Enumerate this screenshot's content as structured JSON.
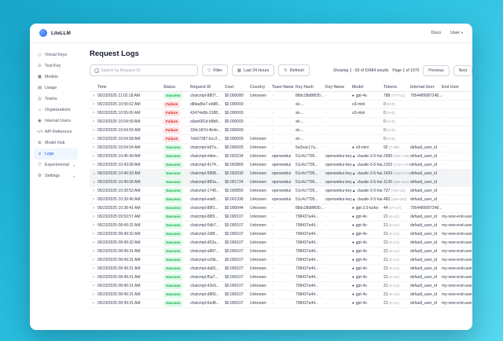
{
  "window": {
    "brand": "LiteLLM",
    "nav": {
      "docs": "Docs",
      "user": "User"
    }
  },
  "sidebar": {
    "items": [
      {
        "label": "Virtual Keys",
        "icon": "key-icon",
        "active": false,
        "collapsible": false
      },
      {
        "label": "Test Key",
        "icon": "test-key-icon",
        "active": false,
        "collapsible": false
      },
      {
        "label": "Models",
        "icon": "models-icon",
        "active": false,
        "collapsible": false
      },
      {
        "label": "Usage",
        "icon": "usage-chart-icon",
        "active": false,
        "collapsible": false
      },
      {
        "label": "Teams",
        "icon": "teams-icon",
        "active": false,
        "collapsible": false
      },
      {
        "label": "Organizations",
        "icon": "organization-icon",
        "active": false,
        "collapsible": false
      },
      {
        "label": "Internal Users",
        "icon": "user-icon",
        "active": false,
        "collapsible": false
      },
      {
        "label": "API Reference",
        "icon": "code-icon",
        "active": false,
        "collapsible": false
      },
      {
        "label": "Model Hub",
        "icon": "grid-icon",
        "active": false,
        "collapsible": false
      },
      {
        "label": "Logs",
        "icon": "logs-icon",
        "active": true,
        "collapsible": false
      },
      {
        "label": "Experimental",
        "icon": "flask-icon",
        "active": false,
        "collapsible": true
      },
      {
        "label": "Settings",
        "icon": "gear-icon",
        "active": false,
        "collapsible": true
      }
    ]
  },
  "page": {
    "title": "Request Logs"
  },
  "toolbar": {
    "search_placeholder": "Search by Request ID",
    "filter_label": "Filter",
    "range_label": "Last 24 Hours",
    "refresh_label": "Refresh"
  },
  "pagination": {
    "showing": "Showing 1 - 50 of 53484 results",
    "page": "Page 1 of 1070",
    "previous": "Previous",
    "next": "Next"
  },
  "table": {
    "columns": [
      "",
      "Time",
      "Status",
      "Request ID",
      "Cost",
      "Country",
      "Team Name",
      "Key Hash",
      "Key Name",
      "Model",
      "Tokens",
      "Internal User",
      "End User"
    ],
    "rows": [
      {
        "time": "05/23/2025 11:02:18 AM",
        "status": "Success",
        "request_id": "chatcmpl-8807...",
        "cost": "$0.000080",
        "country": "Unknown",
        "team": "-",
        "key_hash": "88dc28d8f830...",
        "key_name": "-",
        "model": "gpt-4o",
        "provider": "openai",
        "tokens": "788",
        "tokens_detail": "(777+11)",
        "internal_user": "7954489087248...",
        "end_user": "-",
        "expanded": false
      },
      {
        "time": "05/23/2025 10:55:02 AM",
        "status": "Failure",
        "request_id": "d8dad5e7-eb88...",
        "cost": "$0.000000",
        "country": "-",
        "team": "-",
        "key_hash": "sk-...",
        "key_name": "-",
        "model": "o3-mini",
        "provider": "none",
        "tokens": "0",
        "tokens_detail": "(0+0)",
        "internal_user": "-",
        "end_user": "-",
        "expanded": false
      },
      {
        "time": "05/23/2025 10:55:00 AM",
        "status": "Failure",
        "request_id": "43474a9b-3188...",
        "cost": "$0.000000",
        "country": "-",
        "team": "-",
        "key_hash": "sk-...",
        "key_name": "-",
        "model": "o3-mini",
        "provider": "none",
        "tokens": "0",
        "tokens_detail": "(0+0)",
        "internal_user": "-",
        "end_user": "-",
        "expanded": false
      },
      {
        "time": "05/23/2025 10:54:59 AM",
        "status": "Failure",
        "request_id": "a9ae681d-b8b8...",
        "cost": "$0.000000",
        "country": "-",
        "team": "-",
        "key_hash": "sk-...",
        "key_name": "-",
        "model": "",
        "provider": "none",
        "tokens": "0",
        "tokens_detail": "(0+0)",
        "internal_user": "-",
        "end_user": "-",
        "expanded": false
      },
      {
        "time": "05/23/2025 10:54:59 AM",
        "status": "Failure",
        "request_id": "334c187d-4b4e...",
        "cost": "$0.000000",
        "country": "-",
        "team": "-",
        "key_hash": "sk-...",
        "key_name": "-",
        "model": "",
        "provider": "none",
        "tokens": "0",
        "tokens_detail": "(0+0)",
        "internal_user": "-",
        "end_user": "-",
        "expanded": false
      },
      {
        "time": "05/23/2025 10:54:58 AM",
        "status": "Failure",
        "request_id": "7eb67387-bcc2...",
        "cost": "$0.000000",
        "country": "Unknown",
        "team": "-",
        "key_hash": "sk-...",
        "key_name": "-",
        "model": "",
        "provider": "none",
        "tokens": "0",
        "tokens_detail": "(0+0)",
        "internal_user": "-",
        "end_user": "-",
        "expanded": false
      },
      {
        "time": "05/23/2025 10:54:54 AM",
        "status": "Success",
        "request_id": "chatcmpl-b87a...",
        "cost": "$0.000605",
        "country": "Unknown",
        "team": "-",
        "key_hash": "5a2eac17a...",
        "key_name": "-",
        "model": "o3-mini",
        "provider": "openai",
        "tokens": "92",
        "tokens_detail": "(7+85)",
        "internal_user": "default_user_id",
        "end_user": "-",
        "expanded": false
      },
      {
        "time": "05/23/2025 10:45:49 AM",
        "status": "Success",
        "request_id": "chatcmpl-ebbe...",
        "cost": "$0.002234",
        "country": "Unknown",
        "team": "openwebui",
        "key_hash": "51c4c7795...",
        "key_name": "openwebui-key-2",
        "model": "claude-3-5-hai...",
        "provider": "anthropic",
        "tokens": "2580",
        "tokens_detail": "(2527+53)",
        "internal_user": "default_user_id",
        "end_user": "-",
        "expanded": false
      },
      {
        "time": "05/23/2025 10:43:08 AM",
        "status": "Success",
        "request_id": "chatcmpl-4174...",
        "cost": "$0.002866",
        "country": "Unknown",
        "team": "openwebui",
        "key_hash": "51c4c7795...",
        "key_name": "openwebui-key-2",
        "model": "claude-3-5-hai...",
        "provider": "anthropic",
        "tokens": "2102",
        "tokens_detail": "(1732+370)",
        "internal_user": "default_user_id",
        "end_user": "-",
        "expanded": false
      },
      {
        "time": "05/23/2025 10:40:33 AM",
        "status": "Success",
        "request_id": "chatcmpl-5898...",
        "cost": "$0.002030",
        "country": "Unknown",
        "team": "openwebui",
        "key_hash": "51c4c7795...",
        "key_name": "openwebui-key-2",
        "model": "claude-3-5-hai...",
        "provider": "anthropic",
        "tokens": "1433",
        "tokens_detail": "(1157+276)",
        "internal_user": "default_user_id",
        "end_user": "-",
        "expanded": true
      },
      {
        "time": "05/23/2025 10:40:08 AM",
        "status": "Success",
        "request_id": "chatcmpl-883a...",
        "cost": "$0.001724",
        "country": "Unknown",
        "team": "openwebui",
        "key_hash": "51c4c7795...",
        "key_name": "openwebui-key-2",
        "model": "claude-3-5-hai...",
        "provider": "anthropic",
        "tokens": "1139",
        "tokens_detail": "(885+254)",
        "internal_user": "default_user_id",
        "end_user": "-",
        "expanded": true
      },
      {
        "time": "05/23/2025 10:39:53 AM",
        "status": "Success",
        "request_id": "chatcmpl-1748...",
        "cost": "$0.000855",
        "country": "Unknown",
        "team": "openwebui",
        "key_hash": "51c4c7795...",
        "key_name": "openwebui-key-2",
        "model": "claude-3-5-hai...",
        "provider": "anthropic",
        "tokens": "727",
        "tokens_detail": "(704+23)",
        "internal_user": "default_user_id",
        "end_user": "-",
        "expanded": false
      },
      {
        "time": "05/23/2025 10:39:46 AM",
        "status": "Success",
        "request_id": "chatcmpl-eiw8...",
        "cost": "$0.001336",
        "country": "Unknown",
        "team": "openwebui",
        "key_hash": "51c4c7795...",
        "key_name": "openwebui-key-2",
        "model": "claude-3-5-hai...",
        "provider": "anthropic",
        "tokens": "482",
        "tokens_detail": "(119+363)",
        "internal_user": "default_user_id",
        "end_user": "-",
        "expanded": false
      },
      {
        "time": "05/23/2025 10:38:41 AM",
        "status": "Success",
        "request_id": "chatcmpl-88f1...",
        "cost": "$0.000044",
        "country": "Unknown",
        "team": "-",
        "key_hash": "88dc28d8f830...",
        "key_name": "-",
        "model": "gpt-3.5-turbo",
        "provider": "openai",
        "tokens": "44",
        "tokens_detail": "(27+17)",
        "internal_user": "7954489087248...",
        "end_user": "-",
        "expanded": false
      },
      {
        "time": "05/23/2025 09:53:57 AM",
        "status": "Success",
        "request_id": "chatcmpl-88f3...",
        "cost": "$0.000107",
        "country": "Unknown",
        "team": "-",
        "key_hash": "798437a44...",
        "key_name": "-",
        "model": "gpt-4o",
        "provider": "openai",
        "tokens": "21",
        "tokens_detail": "(9+12)",
        "internal_user": "default_user_id",
        "end_user": "my-new-end-user-1",
        "expanded": false
      },
      {
        "time": "05/23/2025 08:49:32 AM",
        "status": "Success",
        "request_id": "chatcmpl-6db7...",
        "cost": "$0.000107",
        "country": "Unknown",
        "team": "-",
        "key_hash": "798437a44...",
        "key_name": "-",
        "model": "gpt-4o",
        "provider": "openai",
        "tokens": "21",
        "tokens_detail": "(9+12)",
        "internal_user": "default_user_id",
        "end_user": "my-new-end-user-1",
        "expanded": false
      },
      {
        "time": "05/23/2025 08:49:32 AM",
        "status": "Success",
        "request_id": "chatcmpl-2d8f...",
        "cost": "$0.000107",
        "country": "Unknown",
        "team": "-",
        "key_hash": "798437a44...",
        "key_name": "-",
        "model": "gpt-4o",
        "provider": "openai",
        "tokens": "21",
        "tokens_detail": "(9+12)",
        "internal_user": "default_user_id",
        "end_user": "my-new-end-user-1",
        "expanded": false
      },
      {
        "time": "05/23/2025 08:49:32 AM",
        "status": "Success",
        "request_id": "chatcmpl-d52a...",
        "cost": "$0.000107",
        "country": "Unknown",
        "team": "-",
        "key_hash": "798437a44...",
        "key_name": "-",
        "model": "gpt-4o",
        "provider": "openai",
        "tokens": "21",
        "tokens_detail": "(9+12)",
        "internal_user": "default_user_id",
        "end_user": "my-new-end-user-1",
        "expanded": false
      },
      {
        "time": "05/23/2025 08:49:31 AM",
        "status": "Success",
        "request_id": "chatcmpl-a887...",
        "cost": "$0.000107",
        "country": "Unknown",
        "team": "-",
        "key_hash": "798437a44...",
        "key_name": "-",
        "model": "gpt-4o",
        "provider": "openai",
        "tokens": "21",
        "tokens_detail": "(9+12)",
        "internal_user": "default_user_id",
        "end_user": "my-new-end-user-1",
        "expanded": false
      },
      {
        "time": "05/23/2025 08:49:31 AM",
        "status": "Success",
        "request_id": "chatcmpl-cd3b...",
        "cost": "$0.000107",
        "country": "Unknown",
        "team": "-",
        "key_hash": "798437a44...",
        "key_name": "-",
        "model": "gpt-4o",
        "provider": "openai",
        "tokens": "21",
        "tokens_detail": "(9+12)",
        "internal_user": "default_user_id",
        "end_user": "my-new-end-user-1",
        "expanded": false
      },
      {
        "time": "05/23/2025 08:49:31 AM",
        "status": "Success",
        "request_id": "chatcmpl-da81...",
        "cost": "$0.000107",
        "country": "Unknown",
        "team": "-",
        "key_hash": "798437a44...",
        "key_name": "-",
        "model": "gpt-4o",
        "provider": "openai",
        "tokens": "21",
        "tokens_detail": "(9+12)",
        "internal_user": "default_user_id",
        "end_user": "my-new-end-user-1",
        "expanded": false
      },
      {
        "time": "05/23/2025 08:49:31 AM",
        "status": "Success",
        "request_id": "chatcmpl-f5a7...",
        "cost": "$0.000107",
        "country": "Unknown",
        "team": "-",
        "key_hash": "798437a44...",
        "key_name": "-",
        "model": "gpt-4o",
        "provider": "openai",
        "tokens": "21",
        "tokens_detail": "(9+12)",
        "internal_user": "default_user_id",
        "end_user": "my-new-end-user-1",
        "expanded": false
      },
      {
        "time": "05/23/2025 08:49:31 AM",
        "status": "Success",
        "request_id": "chatcmpl-43e9...",
        "cost": "$0.000107",
        "country": "Unknown",
        "team": "-",
        "key_hash": "798437a44...",
        "key_name": "-",
        "model": "gpt-4o",
        "provider": "openai",
        "tokens": "21",
        "tokens_detail": "(9+12)",
        "internal_user": "default_user_id",
        "end_user": "my-new-end-user-1",
        "expanded": false
      },
      {
        "time": "05/23/2025 08:49:31 AM",
        "status": "Success",
        "request_id": "chatcmpl-d865...",
        "cost": "$0.000107",
        "country": "Unknown",
        "team": "-",
        "key_hash": "798437a44...",
        "key_name": "-",
        "model": "gpt-4o",
        "provider": "openai",
        "tokens": "21",
        "tokens_detail": "(9+12)",
        "internal_user": "default_user_id",
        "end_user": "my-new-end-user-1",
        "expanded": false
      },
      {
        "time": "05/23/2025 08:49:31 AM",
        "status": "Success",
        "request_id": "chatcmpl-6ed8...",
        "cost": "$0.000107",
        "country": "Unknown",
        "team": "-",
        "key_hash": "798437a44...",
        "key_name": "-",
        "model": "gpt-4o",
        "provider": "openai",
        "tokens": "21",
        "tokens_detail": "(9+12)",
        "internal_user": "default_user_id",
        "end_user": "my-new-end-user-1",
        "expanded": false
      }
    ]
  },
  "colors": {
    "background_gradient": [
      "#17a6ca",
      "#55d8ef"
    ],
    "accent_blue": "#1d4ed8",
    "active_item_bg": "#eff6ff",
    "success_bg": "#dcfce7",
    "success_text": "#16a34a",
    "failure_bg": "#fee2e2",
    "failure_text": "#dc2626"
  }
}
